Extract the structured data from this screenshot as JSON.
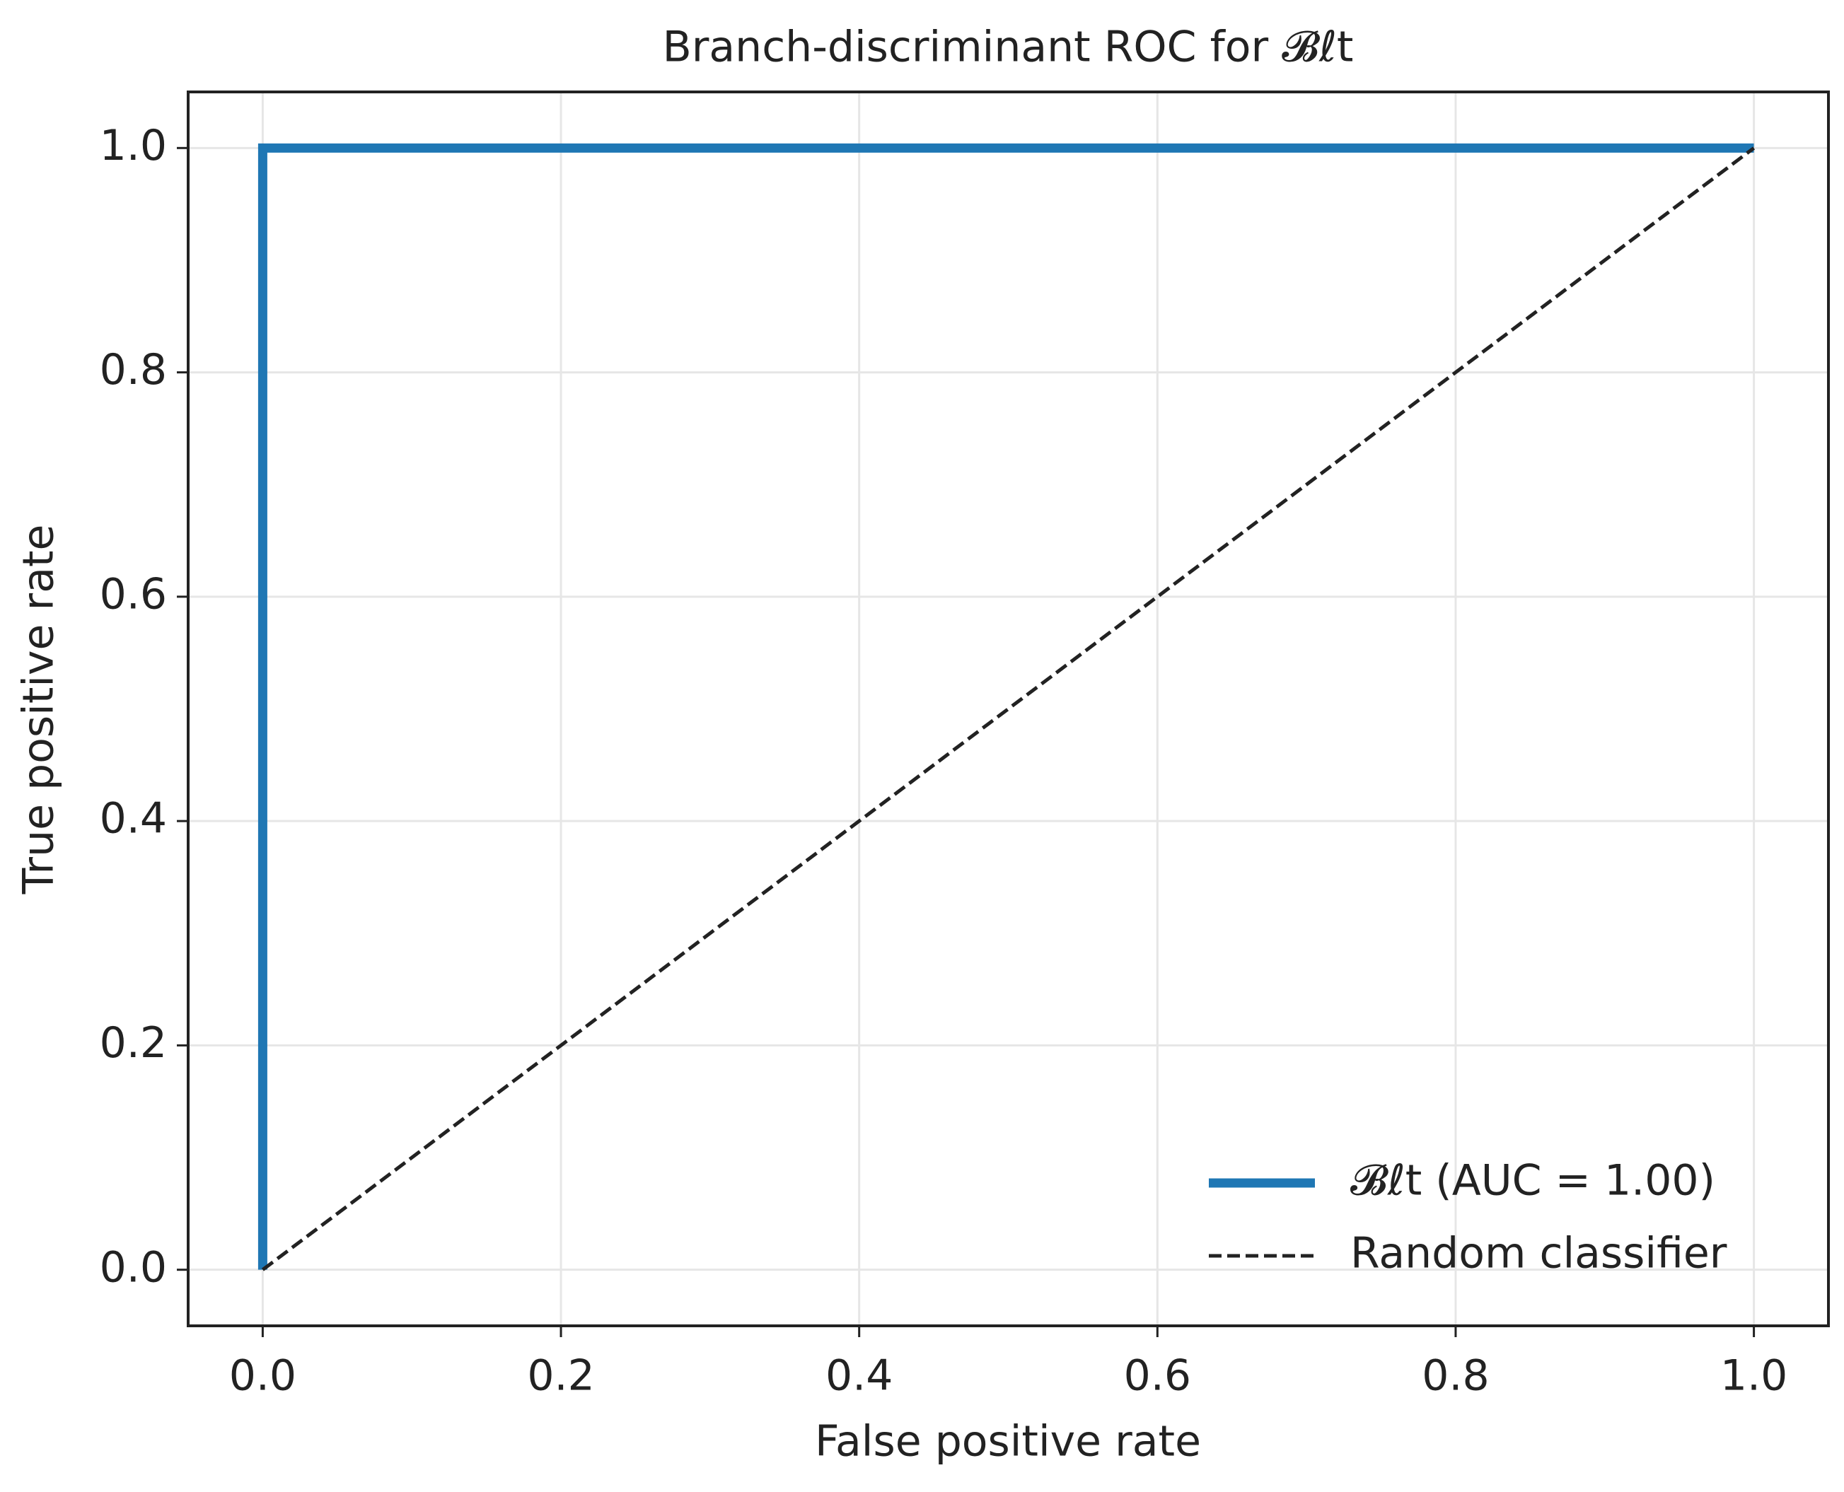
{
  "chart_data": {
    "type": "line",
    "title": "Branch-discriminant ROC for 𝓑ℓt",
    "x_label": "False positive rate",
    "y_label": "True positive rate",
    "xlim": [
      -0.05,
      1.05
    ],
    "ylim": [
      -0.05,
      1.05
    ],
    "xticks": [
      {
        "value": 0,
        "label": "0.0"
      },
      0.2,
      0.4,
      0.6,
      0.8,
      {
        "value": 1,
        "label": "1.0"
      }
    ],
    "yticks": [
      {
        "value": 0,
        "label": "0.0"
      },
      0.2,
      0.4,
      0.6,
      0.8,
      {
        "value": 1,
        "label": "1.0"
      }
    ],
    "grid": true,
    "legend": "lower right",
    "series": [
      {
        "name": "𝓑ℓt (AUC = 1.00)",
        "color": "#1f77b4",
        "style": "solid",
        "x": [
          0,
          0,
          1
        ],
        "values": [
          0,
          1,
          1
        ]
      },
      {
        "name": "Random classifier",
        "color": "#222222",
        "style": "dashed",
        "x": [
          0,
          1
        ],
        "values": [
          0,
          1
        ]
      }
    ]
  }
}
